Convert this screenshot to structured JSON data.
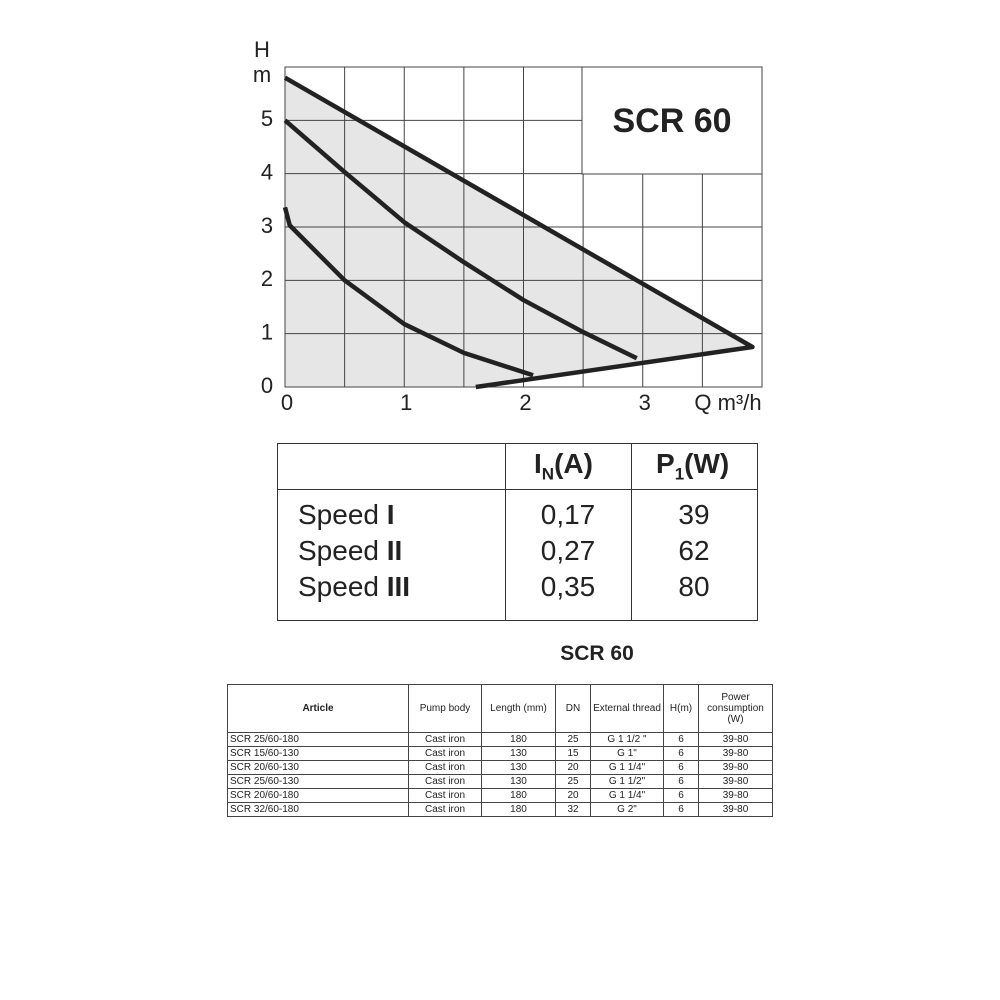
{
  "chart_data": {
    "type": "line",
    "title": "SCR 60",
    "x_label": "Q m³/h",
    "y_label": "H",
    "y_unit": "m",
    "xlim": [
      0,
      4
    ],
    "ylim": [
      0,
      6
    ],
    "xticks": [
      0,
      1,
      2,
      3
    ],
    "yticks": [
      0,
      1,
      2,
      3,
      4,
      5
    ],
    "xgrid": [
      0,
      0.5,
      1,
      1.5,
      2,
      2.5,
      3,
      3.5,
      4
    ],
    "grid": true,
    "area_color": "#e6e6e6",
    "series": [
      {
        "color": "#222222",
        "x": [
          0,
          3.92,
          1.6
        ],
        "values": [
          5.8,
          0.75,
          0
        ],
        "fill": true
      },
      {
        "color": "#222222",
        "x": [
          0,
          0.5,
          1,
          1.5,
          2,
          2.5,
          2.95
        ],
        "values": [
          5,
          4.03,
          3.09,
          2.34,
          1.63,
          1.03,
          0.54
        ]
      },
      {
        "color": "#222222",
        "x": [
          0,
          0.04,
          0.5,
          1,
          1.5,
          2.08
        ],
        "values": [
          3.37,
          3.03,
          2.0,
          1.18,
          0.64,
          0.22
        ]
      }
    ]
  },
  "speed_table": {
    "columns": [
      {
        "main": "I",
        "sub": "N",
        "unit": "(A)"
      },
      {
        "main": "P",
        "sub": "1",
        "unit": "(W)"
      }
    ],
    "rows": [
      {
        "label": "Speed",
        "level": "I",
        "cells": [
          "0,17",
          "39"
        ]
      },
      {
        "label": "Speed",
        "level": "II",
        "cells": [
          "0,27",
          "62"
        ]
      },
      {
        "label": "Speed",
        "level": "III",
        "cells": [
          "0,35",
          "80"
        ]
      }
    ]
  },
  "article_table": {
    "title": "SCR 60",
    "headers": [
      "Article",
      "Pump body",
      "Length (mm)",
      "DN",
      "External thread",
      "H(m)",
      "Power consumption (W)"
    ],
    "rows": [
      [
        "SCR 25/60-180",
        "Cast iron",
        "180",
        "25",
        "G 1 1/2 \"",
        "6",
        "39-80"
      ],
      [
        "SCR 15/60-130",
        "Cast iron",
        "130",
        "15",
        "G 1\"",
        "6",
        "39-80"
      ],
      [
        "SCR 20/60-130",
        "Cast iron",
        "130",
        "20",
        "G 1 1/4\"",
        "6",
        "39-80"
      ],
      [
        "SCR 25/60-130",
        "Cast iron",
        "130",
        "25",
        "G 1 1/2\"",
        "6",
        "39-80"
      ],
      [
        "SCR 20/60-180",
        "Cast iron",
        "180",
        "20",
        "G 1 1/4\"",
        "6",
        "39-80"
      ],
      [
        "SCR 32/60-180",
        "Cast iron",
        "180",
        "32",
        "G 2\"",
        "6",
        "39-80"
      ]
    ]
  }
}
